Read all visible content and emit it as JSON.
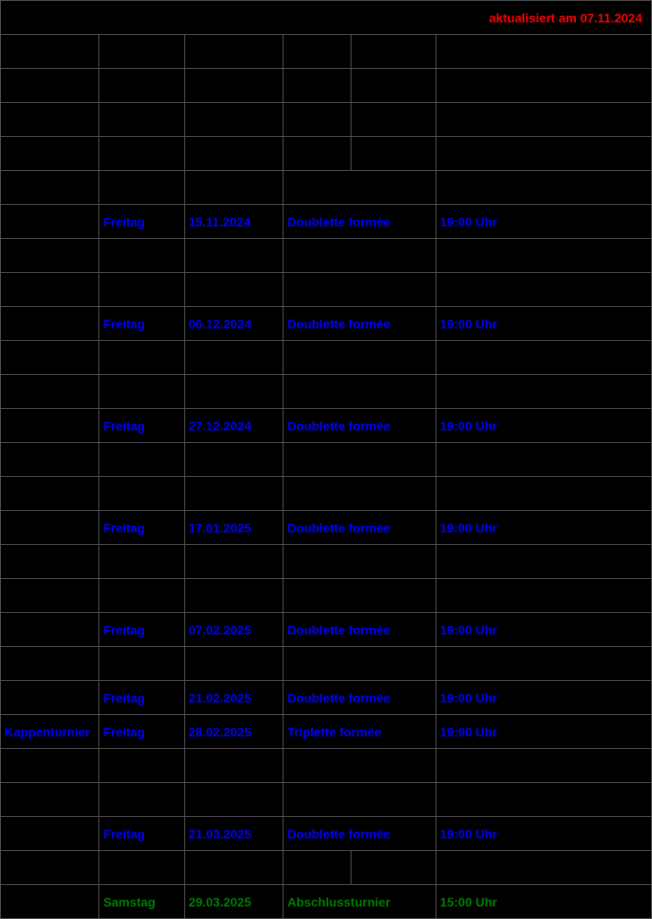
{
  "colors": {
    "background": "#000000",
    "border": "#555555",
    "update_text": "#ff0000",
    "highlight": "#0000ff",
    "final": "#008000"
  },
  "update": {
    "text": "aktualisiert am 07.11.2024"
  },
  "rows": [
    {
      "type": "empty6"
    },
    {
      "type": "empty6"
    },
    {
      "type": "empty6"
    },
    {
      "type": "empty6"
    },
    {
      "type": "merged5",
      "style": "",
      "cells": [
        "",
        "",
        "",
        "",
        ""
      ]
    },
    {
      "type": "merged5",
      "style": "blue",
      "cells": [
        "",
        "Freitag",
        "15.11.2024",
        "Doublette formée",
        "19:00 Uhr"
      ]
    },
    {
      "type": "merged5",
      "style": "",
      "cells": [
        "",
        "",
        "",
        "",
        ""
      ]
    },
    {
      "type": "merged5",
      "style": "",
      "cells": [
        "",
        "",
        "",
        "",
        ""
      ]
    },
    {
      "type": "merged5",
      "style": "blue",
      "cells": [
        "",
        "Freitag",
        "06.12.2024",
        "Doublette formée",
        "19:00 Uhr"
      ]
    },
    {
      "type": "merged5",
      "style": "",
      "cells": [
        "",
        "",
        "",
        "",
        ""
      ]
    },
    {
      "type": "merged5",
      "style": "",
      "cells": [
        "",
        "",
        "",
        "",
        ""
      ]
    },
    {
      "type": "merged5",
      "style": "blue",
      "cells": [
        "",
        "Freitag",
        "27.12.2024",
        "Doublette formée",
        "19:00 Uhr"
      ]
    },
    {
      "type": "merged5",
      "style": "",
      "cells": [
        "",
        "",
        "",
        "",
        ""
      ]
    },
    {
      "type": "merged5",
      "style": "",
      "cells": [
        "",
        "",
        "",
        "",
        ""
      ]
    },
    {
      "type": "merged5",
      "style": "blue",
      "cells": [
        "",
        "Freitag",
        "17.01.2025",
        "Doublette formée",
        "19:00 Uhr"
      ]
    },
    {
      "type": "merged5",
      "style": "",
      "cells": [
        "",
        "",
        "",
        "",
        ""
      ]
    },
    {
      "type": "merged5",
      "style": "",
      "cells": [
        "",
        "",
        "",
        "",
        ""
      ]
    },
    {
      "type": "merged5",
      "style": "blue",
      "cells": [
        "",
        "Freitag",
        "07.02.2025",
        "Doublette formée",
        "19:00 Uhr"
      ]
    },
    {
      "type": "merged5",
      "style": "",
      "cells": [
        "",
        "",
        "",
        "",
        ""
      ]
    },
    {
      "type": "merged5",
      "style": "blue",
      "cells": [
        "",
        "Freitag",
        "21.02.2025",
        "Doublette formée",
        "19:00 Uhr"
      ]
    },
    {
      "type": "merged5",
      "style": "blue",
      "cells": [
        "Kappenturnier",
        "Freitag",
        "28.02.2025",
        "Triplette formée",
        "19:00 Uhr"
      ]
    },
    {
      "type": "merged5",
      "style": "",
      "cells": [
        "",
        "",
        "",
        "",
        ""
      ]
    },
    {
      "type": "merged5",
      "style": "",
      "cells": [
        "",
        "",
        "",
        "",
        ""
      ]
    },
    {
      "type": "merged5",
      "style": "blue",
      "cells": [
        "",
        "Freitag",
        "21.03.2025",
        "Doublette formée",
        "19:00 Uhr"
      ]
    },
    {
      "type": "empty6"
    },
    {
      "type": "merged5",
      "style": "green",
      "cells": [
        "",
        "Samstag",
        "29.03.2025",
        "Abschlussturnier",
        "15:00 Uhr"
      ]
    }
  ]
}
